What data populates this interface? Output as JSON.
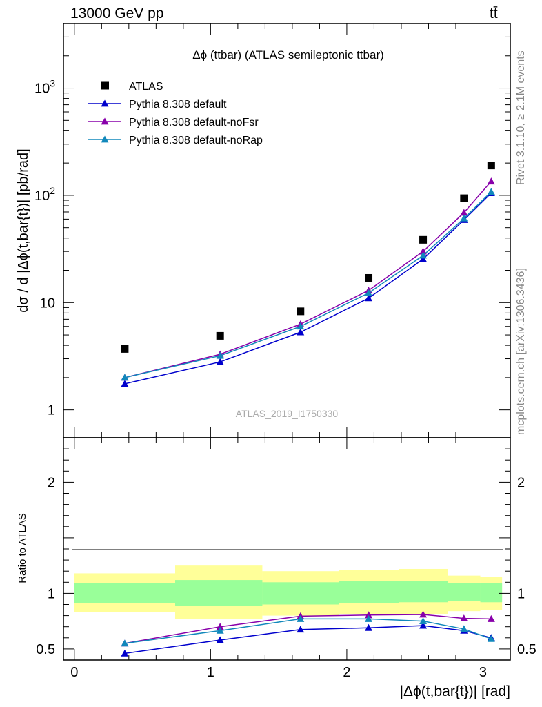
{
  "header": {
    "left": "13000 GeV pp",
    "right": "tt̄"
  },
  "side_labels": {
    "rivet": "Rivet 3.1.10, ≥ 2.1M events",
    "mcplots": "mcplots.cern.ch [arXiv:1306.3436]"
  },
  "colors": {
    "atlas": "#000000",
    "default": "#0000cc",
    "noFsr": "#8800aa",
    "noRap": "#1188bb",
    "band_inner": "#99ff99",
    "band_outer": "#ffff99"
  },
  "chart_data": [
    {
      "type": "scatter",
      "panel": "main",
      "title": "Δϕ (ttbar) (ATLAS semileptonic ttbar)",
      "ylabel": "dσ / d |Δϕ(t,bar{t})| [pb/rad]",
      "watermark": "ATLAS_2019_I1750330",
      "yscale": "log",
      "ylim": [
        0.55,
        4000
      ],
      "xlim": [
        -0.08,
        3.2
      ],
      "y_ticks": [
        "1",
        "10",
        "10^2",
        "10^3"
      ],
      "legend_position": "top-left",
      "x": [
        0.37,
        1.07,
        1.66,
        2.16,
        2.56,
        2.86,
        3.06
      ],
      "series": [
        {
          "name": "ATLAS",
          "marker": "square",
          "values": [
            3.7,
            4.9,
            8.3,
            17.0,
            38.5,
            94.0,
            190.0
          ]
        },
        {
          "name": "Pythia 8.308 default",
          "marker": "triangle",
          "values": [
            1.75,
            2.8,
            5.3,
            11.0,
            25.5,
            59.0,
            105.0
          ]
        },
        {
          "name": "Pythia 8.308 default-noFsr",
          "marker": "triangle",
          "values": [
            2.0,
            3.3,
            6.3,
            13.0,
            30.0,
            69.0,
            135.0
          ]
        },
        {
          "name": "Pythia 8.308 default-noRap",
          "marker": "triangle",
          "values": [
            2.0,
            3.2,
            6.0,
            12.3,
            27.5,
            61.0,
            108.0
          ]
        }
      ]
    },
    {
      "type": "line",
      "panel": "ratio",
      "ylabel": "Ratio to ATLAS",
      "xlabel": "|Δϕ(t,bar{t})| [rad]",
      "ylim": [
        0.4,
        2.4
      ],
      "xlim": [
        -0.08,
        3.2
      ],
      "x_ticks": [
        "0",
        "1",
        "2",
        "3"
      ],
      "y_ticks": [
        "0.5",
        "1",
        "2"
      ],
      "bins": [
        {
          "low": 0.0,
          "high": 0.74,
          "inner": [
            0.91,
            1.09
          ],
          "outer": [
            0.83,
            1.18
          ]
        },
        {
          "low": 0.74,
          "high": 1.38,
          "inner": [
            0.89,
            1.12
          ],
          "outer": [
            0.77,
            1.25
          ]
        },
        {
          "low": 1.38,
          "high": 1.94,
          "inner": [
            0.9,
            1.1
          ],
          "outer": [
            0.8,
            1.2
          ]
        },
        {
          "low": 1.94,
          "high": 2.38,
          "inner": [
            0.91,
            1.11
          ],
          "outer": [
            0.81,
            1.21
          ]
        },
        {
          "low": 2.38,
          "high": 2.74,
          "inner": [
            0.92,
            1.11
          ],
          "outer": [
            0.81,
            1.22
          ]
        },
        {
          "low": 2.74,
          "high": 2.98,
          "inner": [
            0.93,
            1.09
          ],
          "outer": [
            0.84,
            1.16
          ]
        },
        {
          "low": 2.98,
          "high": 3.14,
          "inner": [
            0.92,
            1.09
          ],
          "outer": [
            0.85,
            1.15
          ]
        }
      ],
      "x": [
        0.37,
        1.07,
        1.66,
        2.16,
        2.56,
        2.86,
        3.06
      ],
      "series": [
        {
          "name": "Pythia 8.308 default",
          "values": [
            0.46,
            0.58,
            0.675,
            0.69,
            0.71,
            0.665,
            0.6
          ]
        },
        {
          "name": "Pythia 8.308 default-noFsr",
          "values": [
            0.55,
            0.7,
            0.795,
            0.805,
            0.81,
            0.775,
            0.77
          ]
        },
        {
          "name": "Pythia 8.308 default-noRap",
          "values": [
            0.55,
            0.665,
            0.77,
            0.77,
            0.75,
            0.68,
            0.59
          ]
        }
      ]
    }
  ]
}
